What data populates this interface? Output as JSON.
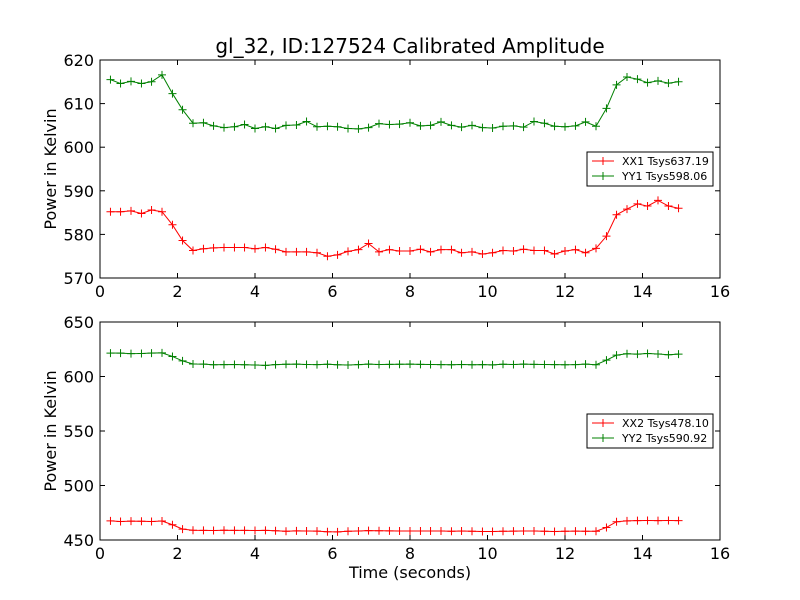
{
  "title": "gl_32, ID:127524 Calibrated Amplitude",
  "colors": {
    "series1": "#ff0000",
    "series2": "#008000",
    "axes": "#000000",
    "background": "#ffffff"
  },
  "chart_data": [
    {
      "type": "line",
      "title": "gl_32, ID:127524 Calibrated Amplitude",
      "xlabel": "",
      "ylabel": "Power in Kelvin",
      "xlim": [
        0,
        16
      ],
      "ylim": [
        570,
        620
      ],
      "xticks": [
        0,
        2,
        4,
        6,
        8,
        10,
        12,
        14,
        16
      ],
      "yticks": [
        570,
        580,
        590,
        600,
        610,
        620
      ],
      "grid": false,
      "legend_position": "center-right",
      "marker": "+",
      "x": [
        0.27,
        0.53,
        0.8,
        1.07,
        1.33,
        1.6,
        1.87,
        2.13,
        2.4,
        2.67,
        2.93,
        3.2,
        3.47,
        3.73,
        4.0,
        4.27,
        4.53,
        4.8,
        5.07,
        5.33,
        5.6,
        5.87,
        6.13,
        6.4,
        6.67,
        6.93,
        7.2,
        7.47,
        7.73,
        8.0,
        8.27,
        8.53,
        8.8,
        9.07,
        9.33,
        9.6,
        9.87,
        10.13,
        10.4,
        10.67,
        10.93,
        11.2,
        11.47,
        11.73,
        12.0,
        12.27,
        12.53,
        12.8,
        13.07,
        13.33,
        13.6,
        13.87,
        14.13,
        14.4,
        14.67,
        14.93
      ],
      "series": [
        {
          "name": "XX1 Tsys637.19",
          "color": "#ff0000",
          "values": [
            585.2,
            585.2,
            585.4,
            584.8,
            585.6,
            585.2,
            582.2,
            578.6,
            576.3,
            576.7,
            576.9,
            577.0,
            577.0,
            577.0,
            576.7,
            577.0,
            576.6,
            576.0,
            576.0,
            576.0,
            575.8,
            575.0,
            575.3,
            576.1,
            576.5,
            577.9,
            576.0,
            576.5,
            576.2,
            576.2,
            576.6,
            576.0,
            576.5,
            576.5,
            575.8,
            576.0,
            575.5,
            575.8,
            576.3,
            576.2,
            576.6,
            576.3,
            576.3,
            575.5,
            576.2,
            576.5,
            575.8,
            576.8,
            579.6,
            584.5,
            585.8,
            587.0,
            586.5,
            587.8,
            586.5,
            586.0
          ]
        },
        {
          "name": "YY1 Tsys598.06",
          "color": "#008000",
          "values": [
            615.5,
            614.6,
            615.1,
            614.6,
            615.0,
            616.6,
            612.3,
            608.6,
            605.5,
            605.6,
            604.9,
            604.5,
            604.7,
            605.2,
            604.3,
            604.7,
            604.3,
            605.0,
            605.1,
            605.9,
            604.7,
            604.8,
            604.7,
            604.3,
            604.2,
            604.5,
            605.4,
            605.2,
            605.3,
            605.6,
            604.9,
            605.0,
            605.8,
            605.0,
            604.6,
            605.0,
            604.5,
            604.4,
            604.8,
            604.9,
            604.6,
            605.9,
            605.5,
            604.8,
            604.7,
            604.9,
            605.8,
            604.8,
            608.9,
            614.3,
            616.1,
            615.6,
            614.8,
            615.2,
            614.7,
            615.0
          ]
        }
      ]
    },
    {
      "type": "line",
      "title": "",
      "xlabel": "Time (seconds)",
      "ylabel": "Power in Kelvin",
      "xlim": [
        0,
        16
      ],
      "ylim": [
        450,
        650
      ],
      "xticks": [
        0,
        2,
        4,
        6,
        8,
        10,
        12,
        14,
        16
      ],
      "yticks": [
        450,
        500,
        550,
        600,
        650
      ],
      "grid": false,
      "legend_position": "center-right",
      "marker": "+",
      "x": [
        0.27,
        0.53,
        0.8,
        1.07,
        1.33,
        1.6,
        1.87,
        2.13,
        2.4,
        2.67,
        2.93,
        3.2,
        3.47,
        3.73,
        4.0,
        4.27,
        4.53,
        4.8,
        5.07,
        5.33,
        5.6,
        5.87,
        6.13,
        6.4,
        6.67,
        6.93,
        7.2,
        7.47,
        7.73,
        8.0,
        8.27,
        8.53,
        8.8,
        9.07,
        9.33,
        9.6,
        9.87,
        10.13,
        10.4,
        10.67,
        10.93,
        11.2,
        11.47,
        11.73,
        12.0,
        12.27,
        12.53,
        12.8,
        13.07,
        13.33,
        13.6,
        13.87,
        14.13,
        14.4,
        14.67,
        14.93
      ],
      "series": [
        {
          "name": "XX2 Tsys478.10",
          "color": "#ff0000",
          "values": [
            467.5,
            467.0,
            467.3,
            467.2,
            467.0,
            467.4,
            464.0,
            460.0,
            458.9,
            458.8,
            458.7,
            458.9,
            458.8,
            458.8,
            458.7,
            458.8,
            458.5,
            458.0,
            458.4,
            458.2,
            458.1,
            457.6,
            457.5,
            458.0,
            458.2,
            458.6,
            458.5,
            458.4,
            458.3,
            458.2,
            458.3,
            458.2,
            458.3,
            458.0,
            458.2,
            458.0,
            457.8,
            457.8,
            458.0,
            458.1,
            458.3,
            458.2,
            458.0,
            457.8,
            458.0,
            458.1,
            458.0,
            458.0,
            461.5,
            466.8,
            467.5,
            467.8,
            467.9,
            467.8,
            467.9,
            467.8
          ]
        },
        {
          "name": "YY2 Tsys590.92",
          "color": "#008000",
          "values": [
            621.5,
            621.4,
            621.0,
            621.1,
            621.5,
            621.7,
            618.4,
            614.3,
            611.5,
            611.3,
            610.8,
            610.9,
            611.0,
            610.8,
            610.6,
            610.2,
            610.9,
            611.2,
            611.3,
            611.0,
            610.9,
            611.2,
            610.8,
            610.6,
            610.9,
            611.3,
            611.0,
            611.1,
            611.2,
            611.3,
            611.1,
            611.0,
            610.9,
            610.8,
            611.0,
            610.8,
            610.9,
            610.7,
            611.2,
            611.0,
            611.3,
            611.1,
            611.0,
            610.9,
            610.8,
            610.9,
            611.4,
            610.8,
            615.0,
            619.6,
            620.9,
            620.5,
            621.1,
            620.6,
            620.0,
            620.5
          ]
        }
      ]
    }
  ]
}
